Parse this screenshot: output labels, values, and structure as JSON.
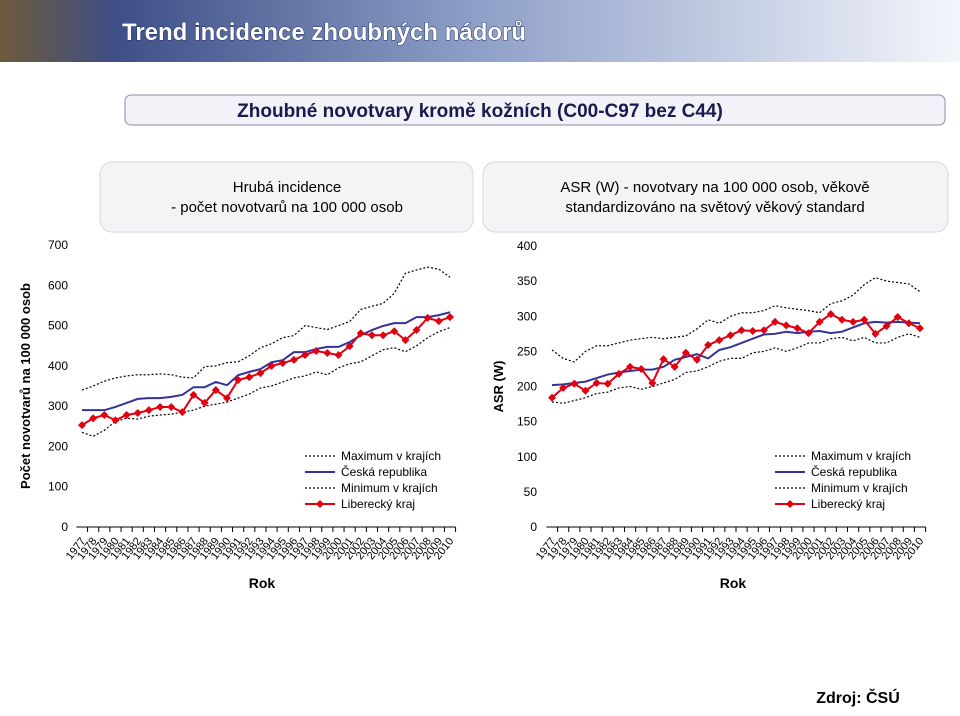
{
  "header": {
    "title": "Trend incidence zhoubných nádorů",
    "subtitle": "Zhoubné novotvary kromě kožních (C00-C97 bez C44)"
  },
  "source": "Zdroj: ČSÚ",
  "chart_data": [
    {
      "type": "line",
      "title": [
        "Hrubá incidence",
        "- počet novotvarů na 100 000 osob"
      ],
      "ylabel": "Počet novotvarů na 100 000 osob",
      "xlabel": "Rok",
      "categories": [
        "1977",
        "1978",
        "1979",
        "1980",
        "1981",
        "1982",
        "1983",
        "1984",
        "1985",
        "1986",
        "1987",
        "1988",
        "1989",
        "1990",
        "1991",
        "1992",
        "1993",
        "1994",
        "1995",
        "1996",
        "1997",
        "1998",
        "1999",
        "2000",
        "2001",
        "2002",
        "2003",
        "2004",
        "2005",
        "2006",
        "2007",
        "2008",
        "2009",
        "2010"
      ],
      "ylim": [
        0,
        700
      ],
      "yticks": [
        0,
        100,
        200,
        300,
        400,
        500,
        600,
        700
      ],
      "series": [
        {
          "name": "Maximum v krajích",
          "color": "#000000",
          "style": "dotted",
          "values": [
            340,
            350,
            362,
            370,
            375,
            378,
            378,
            380,
            378,
            372,
            370,
            398,
            400,
            408,
            410,
            425,
            445,
            455,
            470,
            475,
            500,
            495,
            490,
            500,
            510,
            540,
            548,
            555,
            580,
            630,
            638,
            645,
            640,
            620
          ]
        },
        {
          "name": "Česká republika",
          "color": "#333399",
          "style": "solid",
          "values": [
            290,
            290,
            290,
            298,
            308,
            318,
            320,
            320,
            323,
            328,
            347,
            347,
            360,
            352,
            377,
            385,
            392,
            409,
            414,
            434,
            434,
            442,
            447,
            447,
            459,
            476,
            489,
            499,
            506,
            506,
            521,
            521,
            526,
            533
          ]
        },
        {
          "name": "Minimum v krajích",
          "color": "#000000",
          "style": "dotted",
          "values": [
            235,
            225,
            240,
            262,
            270,
            268,
            275,
            278,
            280,
            285,
            290,
            300,
            305,
            310,
            320,
            330,
            345,
            350,
            360,
            370,
            375,
            385,
            378,
            395,
            405,
            410,
            425,
            440,
            445,
            435,
            450,
            470,
            485,
            495
          ]
        },
        {
          "name": "Liberecký kraj",
          "color": "#e0000f",
          "style": "solid",
          "marker": "diamond",
          "values": [
            253,
            270,
            278,
            265,
            278,
            283,
            290,
            298,
            298,
            285,
            328,
            308,
            340,
            320,
            365,
            372,
            382,
            400,
            407,
            415,
            427,
            437,
            432,
            427,
            449,
            481,
            476,
            476,
            486,
            464,
            489,
            519,
            511,
            521
          ]
        }
      ]
    },
    {
      "type": "line",
      "title": [
        "ASR (W) - novotvary na 100 000 osob, věkově",
        "standardizováno na světový věkový standard"
      ],
      "ylabel": "ASR (W)",
      "xlabel": "Rok",
      "categories": [
        "1977",
        "1978",
        "1979",
        "1980",
        "1981",
        "1982",
        "1983",
        "1984",
        "1985",
        "1986",
        "1987",
        "1988",
        "1989",
        "1990",
        "1991",
        "1992",
        "1993",
        "1994",
        "1995",
        "1996",
        "1997",
        "1998",
        "1999",
        "2000",
        "2001",
        "2002",
        "2003",
        "2004",
        "2005",
        "2006",
        "2007",
        "2008",
        "2009",
        "2010"
      ],
      "ylim": [
        0,
        400
      ],
      "yticks": [
        0,
        50,
        100,
        150,
        200,
        250,
        300,
        350,
        400
      ],
      "series": [
        {
          "name": "Maximum v krajích",
          "color": "#000000",
          "style": "dotted",
          "values": [
            252,
            240,
            235,
            250,
            258,
            258,
            262,
            266,
            268,
            270,
            268,
            270,
            272,
            282,
            295,
            290,
            300,
            305,
            305,
            308,
            315,
            312,
            310,
            308,
            305,
            318,
            322,
            330,
            345,
            355,
            350,
            348,
            346,
            335
          ]
        },
        {
          "name": "Česká republika",
          "color": "#333399",
          "style": "solid",
          "values": [
            202,
            203,
            205,
            207,
            212,
            217,
            220,
            222,
            224,
            224,
            228,
            238,
            242,
            246,
            240,
            252,
            256,
            262,
            268,
            274,
            275,
            278,
            276,
            278,
            279,
            276,
            278,
            284,
            290,
            292,
            291,
            292,
            291,
            290
          ]
        },
        {
          "name": "Minimum v krajích",
          "color": "#000000",
          "style": "dotted",
          "values": [
            178,
            176,
            180,
            184,
            190,
            192,
            198,
            200,
            196,
            200,
            205,
            210,
            220,
            222,
            228,
            236,
            240,
            240,
            248,
            250,
            255,
            250,
            255,
            262,
            262,
            268,
            270,
            265,
            270,
            262,
            262,
            270,
            275,
            270
          ]
        },
        {
          "name": "Liberecký kraj",
          "color": "#e0000f",
          "style": "solid",
          "marker": "diamond",
          "values": [
            184,
            198,
            204,
            194,
            205,
            204,
            218,
            228,
            225,
            205,
            239,
            228,
            248,
            238,
            259,
            266,
            273,
            280,
            279,
            280,
            292,
            287,
            283,
            276,
            292,
            303,
            295,
            292,
            295,
            275,
            286,
            299,
            290,
            283
          ]
        }
      ]
    }
  ]
}
